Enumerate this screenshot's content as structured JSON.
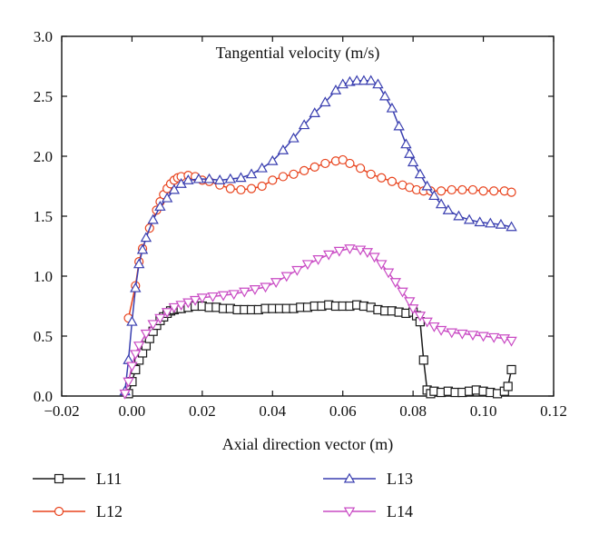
{
  "chart_data": {
    "type": "line",
    "title": "Tangential velocity (m/s)",
    "xlabel": "Axial direction vector (m)",
    "ylabel": "",
    "xlim": [
      -0.02,
      0.12
    ],
    "ylim": [
      0.0,
      3.0
    ],
    "x_ticks": [
      "−0.02",
      "0.00",
      "0.02",
      "0.04",
      "0.06",
      "0.08",
      "0.10",
      "0.12"
    ],
    "y_ticks": [
      "0.0",
      "0.5",
      "1.0",
      "1.5",
      "2.0",
      "2.5",
      "3.0"
    ],
    "grid": false,
    "legend_position": "bottom",
    "series": [
      {
        "name": "L11",
        "marker": "square",
        "color": "#1a1a1a",
        "points": [
          [
            -0.001,
            0.02
          ],
          [
            0.0,
            0.12
          ],
          [
            0.001,
            0.22
          ],
          [
            0.002,
            0.3
          ],
          [
            0.003,
            0.36
          ],
          [
            0.004,
            0.42
          ],
          [
            0.005,
            0.48
          ],
          [
            0.006,
            0.54
          ],
          [
            0.007,
            0.59
          ],
          [
            0.008,
            0.63
          ],
          [
            0.009,
            0.66
          ],
          [
            0.01,
            0.69
          ],
          [
            0.011,
            0.71
          ],
          [
            0.012,
            0.72
          ],
          [
            0.013,
            0.73
          ],
          [
            0.014,
            0.73
          ],
          [
            0.016,
            0.74
          ],
          [
            0.018,
            0.75
          ],
          [
            0.02,
            0.75
          ],
          [
            0.022,
            0.74
          ],
          [
            0.024,
            0.74
          ],
          [
            0.026,
            0.73
          ],
          [
            0.028,
            0.73
          ],
          [
            0.03,
            0.72
          ],
          [
            0.032,
            0.72
          ],
          [
            0.034,
            0.72
          ],
          [
            0.036,
            0.72
          ],
          [
            0.038,
            0.73
          ],
          [
            0.04,
            0.73
          ],
          [
            0.042,
            0.73
          ],
          [
            0.044,
            0.73
          ],
          [
            0.046,
            0.73
          ],
          [
            0.048,
            0.74
          ],
          [
            0.05,
            0.74
          ],
          [
            0.052,
            0.75
          ],
          [
            0.054,
            0.75
          ],
          [
            0.056,
            0.76
          ],
          [
            0.058,
            0.75
          ],
          [
            0.06,
            0.75
          ],
          [
            0.062,
            0.75
          ],
          [
            0.064,
            0.76
          ],
          [
            0.066,
            0.75
          ],
          [
            0.068,
            0.74
          ],
          [
            0.07,
            0.72
          ],
          [
            0.072,
            0.71
          ],
          [
            0.074,
            0.71
          ],
          [
            0.076,
            0.7
          ],
          [
            0.078,
            0.69
          ],
          [
            0.08,
            0.7
          ],
          [
            0.081,
            0.67
          ],
          [
            0.082,
            0.62
          ],
          [
            0.083,
            0.3
          ],
          [
            0.084,
            0.05
          ],
          [
            0.085,
            0.02
          ],
          [
            0.086,
            0.04
          ],
          [
            0.088,
            0.03
          ],
          [
            0.09,
            0.04
          ],
          [
            0.092,
            0.03
          ],
          [
            0.094,
            0.03
          ],
          [
            0.096,
            0.04
          ],
          [
            0.098,
            0.05
          ],
          [
            0.1,
            0.04
          ],
          [
            0.102,
            0.03
          ],
          [
            0.104,
            0.02
          ],
          [
            0.106,
            0.04
          ],
          [
            0.107,
            0.08
          ],
          [
            0.108,
            0.22
          ]
        ]
      },
      {
        "name": "L12",
        "marker": "circle",
        "color": "#e8431d",
        "points": [
          [
            -0.001,
            0.65
          ],
          [
            0.001,
            0.92
          ],
          [
            0.002,
            1.12
          ],
          [
            0.003,
            1.23
          ],
          [
            0.005,
            1.4
          ],
          [
            0.007,
            1.55
          ],
          [
            0.008,
            1.62
          ],
          [
            0.009,
            1.68
          ],
          [
            0.01,
            1.73
          ],
          [
            0.011,
            1.77
          ],
          [
            0.012,
            1.8
          ],
          [
            0.013,
            1.82
          ],
          [
            0.014,
            1.83
          ],
          [
            0.016,
            1.84
          ],
          [
            0.018,
            1.83
          ],
          [
            0.02,
            1.8
          ],
          [
            0.022,
            1.79
          ],
          [
            0.025,
            1.76
          ],
          [
            0.028,
            1.73
          ],
          [
            0.031,
            1.72
          ],
          [
            0.034,
            1.73
          ],
          [
            0.037,
            1.75
          ],
          [
            0.04,
            1.8
          ],
          [
            0.043,
            1.83
          ],
          [
            0.046,
            1.85
          ],
          [
            0.049,
            1.88
          ],
          [
            0.052,
            1.91
          ],
          [
            0.055,
            1.94
          ],
          [
            0.058,
            1.96
          ],
          [
            0.06,
            1.97
          ],
          [
            0.062,
            1.94
          ],
          [
            0.065,
            1.9
          ],
          [
            0.068,
            1.85
          ],
          [
            0.071,
            1.82
          ],
          [
            0.074,
            1.79
          ],
          [
            0.077,
            1.76
          ],
          [
            0.079,
            1.74
          ],
          [
            0.081,
            1.72
          ],
          [
            0.083,
            1.71
          ],
          [
            0.085,
            1.71
          ],
          [
            0.088,
            1.71
          ],
          [
            0.091,
            1.72
          ],
          [
            0.094,
            1.72
          ],
          [
            0.097,
            1.72
          ],
          [
            0.1,
            1.71
          ],
          [
            0.103,
            1.71
          ],
          [
            0.106,
            1.71
          ],
          [
            0.108,
            1.7
          ]
        ]
      },
      {
        "name": "L13",
        "marker": "triangle-up",
        "color": "#3a3fb0",
        "points": [
          [
            -0.002,
            0.04
          ],
          [
            -0.001,
            0.3
          ],
          [
            0.0,
            0.62
          ],
          [
            0.001,
            0.9
          ],
          [
            0.002,
            1.1
          ],
          [
            0.003,
            1.22
          ],
          [
            0.004,
            1.32
          ],
          [
            0.006,
            1.47
          ],
          [
            0.008,
            1.58
          ],
          [
            0.01,
            1.65
          ],
          [
            0.012,
            1.72
          ],
          [
            0.014,
            1.77
          ],
          [
            0.016,
            1.8
          ],
          [
            0.019,
            1.81
          ],
          [
            0.022,
            1.81
          ],
          [
            0.025,
            1.8
          ],
          [
            0.028,
            1.81
          ],
          [
            0.031,
            1.82
          ],
          [
            0.034,
            1.85
          ],
          [
            0.037,
            1.9
          ],
          [
            0.04,
            1.96
          ],
          [
            0.043,
            2.05
          ],
          [
            0.046,
            2.15
          ],
          [
            0.049,
            2.26
          ],
          [
            0.052,
            2.36
          ],
          [
            0.055,
            2.45
          ],
          [
            0.058,
            2.55
          ],
          [
            0.06,
            2.6
          ],
          [
            0.062,
            2.62
          ],
          [
            0.064,
            2.63
          ],
          [
            0.066,
            2.63
          ],
          [
            0.068,
            2.63
          ],
          [
            0.07,
            2.6
          ],
          [
            0.072,
            2.5
          ],
          [
            0.074,
            2.4
          ],
          [
            0.076,
            2.25
          ],
          [
            0.078,
            2.1
          ],
          [
            0.079,
            2.02
          ],
          [
            0.08,
            1.95
          ],
          [
            0.082,
            1.85
          ],
          [
            0.084,
            1.75
          ],
          [
            0.086,
            1.67
          ],
          [
            0.088,
            1.6
          ],
          [
            0.09,
            1.55
          ],
          [
            0.093,
            1.5
          ],
          [
            0.096,
            1.47
          ],
          [
            0.099,
            1.45
          ],
          [
            0.102,
            1.44
          ],
          [
            0.105,
            1.43
          ],
          [
            0.108,
            1.41
          ]
        ]
      },
      {
        "name": "L14",
        "marker": "triangle-down",
        "color": "#c94bc4",
        "points": [
          [
            -0.002,
            0.02
          ],
          [
            -0.001,
            0.12
          ],
          [
            0.0,
            0.25
          ],
          [
            0.001,
            0.35
          ],
          [
            0.002,
            0.42
          ],
          [
            0.004,
            0.52
          ],
          [
            0.006,
            0.6
          ],
          [
            0.008,
            0.65
          ],
          [
            0.01,
            0.7
          ],
          [
            0.012,
            0.74
          ],
          [
            0.014,
            0.76
          ],
          [
            0.016,
            0.78
          ],
          [
            0.018,
            0.8
          ],
          [
            0.02,
            0.82
          ],
          [
            0.023,
            0.83
          ],
          [
            0.026,
            0.84
          ],
          [
            0.029,
            0.85
          ],
          [
            0.032,
            0.87
          ],
          [
            0.035,
            0.89
          ],
          [
            0.038,
            0.91
          ],
          [
            0.041,
            0.95
          ],
          [
            0.044,
            1.0
          ],
          [
            0.047,
            1.05
          ],
          [
            0.05,
            1.1
          ],
          [
            0.053,
            1.14
          ],
          [
            0.056,
            1.18
          ],
          [
            0.059,
            1.21
          ],
          [
            0.062,
            1.23
          ],
          [
            0.065,
            1.22
          ],
          [
            0.067,
            1.2
          ],
          [
            0.069,
            1.16
          ],
          [
            0.071,
            1.1
          ],
          [
            0.073,
            1.03
          ],
          [
            0.075,
            0.95
          ],
          [
            0.077,
            0.87
          ],
          [
            0.079,
            0.79
          ],
          [
            0.08,
            0.73
          ],
          [
            0.082,
            0.67
          ],
          [
            0.084,
            0.62
          ],
          [
            0.086,
            0.58
          ],
          [
            0.088,
            0.55
          ],
          [
            0.091,
            0.53
          ],
          [
            0.094,
            0.52
          ],
          [
            0.097,
            0.51
          ],
          [
            0.1,
            0.5
          ],
          [
            0.103,
            0.49
          ],
          [
            0.106,
            0.48
          ],
          [
            0.108,
            0.46
          ]
        ]
      }
    ]
  }
}
